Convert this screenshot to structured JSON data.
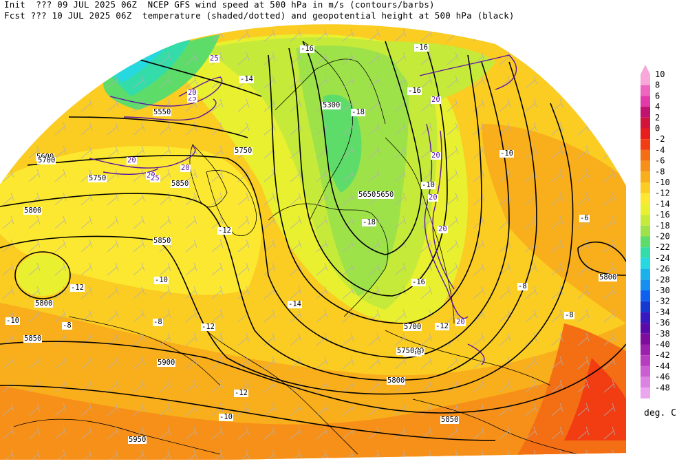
{
  "header": {
    "line1": "Init  ??? 09 JUL 2025 06Z  NCEP GFS wind speed at 500 hPa in m/s (contours/barbs)",
    "line2": "Fcst ??? 10 JUL 2025 06Z  temperature (shaded/dotted) and geopotential height at 500 hPa (black)"
  },
  "colorbar": {
    "unit": "deg. C",
    "levels": [
      "10",
      "8",
      "6",
      "4",
      "2",
      "0",
      "-2",
      "-4",
      "-6",
      "-8",
      "-10",
      "-12",
      "-14",
      "-16",
      "-18",
      "-20",
      "-22",
      "-24",
      "-26",
      "-28",
      "-30",
      "-32",
      "-34",
      "-36",
      "-38",
      "-40",
      "-42",
      "-44",
      "-46",
      "-48"
    ],
    "colors": [
      "#f7a8d8",
      "#ef66c0",
      "#e23aa8",
      "#c0126e",
      "#d2143c",
      "#e81e1e",
      "#f23c12",
      "#f46e14",
      "#f79018",
      "#f9ae1c",
      "#fbcc22",
      "#fce830",
      "#e8f030",
      "#c6ea3a",
      "#9ee24a",
      "#5edc6a",
      "#33dca8",
      "#26d8e0",
      "#1ab2ec",
      "#1690f0",
      "#1060f0",
      "#1438d0",
      "#3818c0",
      "#5a0aa8",
      "#7e0c9c",
      "#9c22ae",
      "#b83cc0",
      "#cc5ed2",
      "#dc82e2",
      "#eca6f0"
    ]
  },
  "height_labels": [
    "5300",
    "5550",
    "5600",
    "5650",
    "5650",
    "5700",
    "5700",
    "5700",
    "5750",
    "5750",
    "5750",
    "5750",
    "5800",
    "5800",
    "5800",
    "5800",
    "5850",
    "5850",
    "5850",
    "5850",
    "5900",
    "5950"
  ],
  "temp_labels": [
    "-16",
    "-16",
    "-14",
    "-12",
    "-12",
    "-12",
    "-12",
    "-12",
    "-10",
    "-10",
    "-10",
    "-10",
    "-10",
    "-8",
    "-8",
    "-8",
    "-8",
    "-6",
    "-14",
    "-16",
    "-16",
    "-18",
    "-18"
  ],
  "wind_labels": [
    "25",
    "20",
    "20",
    "20",
    "20",
    "20",
    "20",
    "20",
    "20",
    "20",
    "25",
    "25"
  ],
  "colors": {
    "height_contour": "#000000",
    "wind_contour": "#5a14a0",
    "coast": "#000000",
    "barb": "#b4b4b4"
  }
}
